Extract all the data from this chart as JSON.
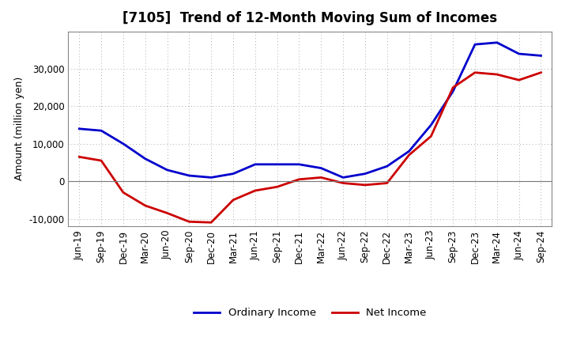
{
  "title": "[7105]  Trend of 12-Month Moving Sum of Incomes",
  "ylabel": "Amount (million yen)",
  "background_color": "#ffffff",
  "grid_color": "#aaaaaa",
  "x_labels": [
    "Jun-19",
    "Sep-19",
    "Dec-19",
    "Mar-20",
    "Jun-20",
    "Sep-20",
    "Dec-20",
    "Mar-21",
    "Jun-21",
    "Sep-21",
    "Dec-21",
    "Mar-22",
    "Jun-22",
    "Sep-22",
    "Dec-22",
    "Mar-23",
    "Jun-23",
    "Sep-23",
    "Dec-23",
    "Mar-24",
    "Jun-24",
    "Sep-24"
  ],
  "ordinary_income": [
    14000,
    13500,
    10000,
    6000,
    3000,
    1500,
    1000,
    2000,
    4500,
    4500,
    4500,
    3500,
    1000,
    2000,
    4000,
    8000,
    15000,
    24000,
    36500,
    37000,
    34000,
    33500
  ],
  "net_income": [
    6500,
    5500,
    -3000,
    -6500,
    -8500,
    -10800,
    -11000,
    -5000,
    -2500,
    -1500,
    500,
    1000,
    -500,
    -1000,
    -500,
    7000,
    12000,
    25000,
    29000,
    28500,
    27000,
    29000
  ],
  "ordinary_income_color": "#0000cc",
  "net_income_color": "#cc0000",
  "ylim": [
    -12000,
    40000
  ],
  "yticks": [
    -10000,
    0,
    10000,
    20000,
    30000
  ],
  "line_width": 2.0,
  "title_fontsize": 12,
  "tick_fontsize": 8.5,
  "ylabel_fontsize": 9
}
